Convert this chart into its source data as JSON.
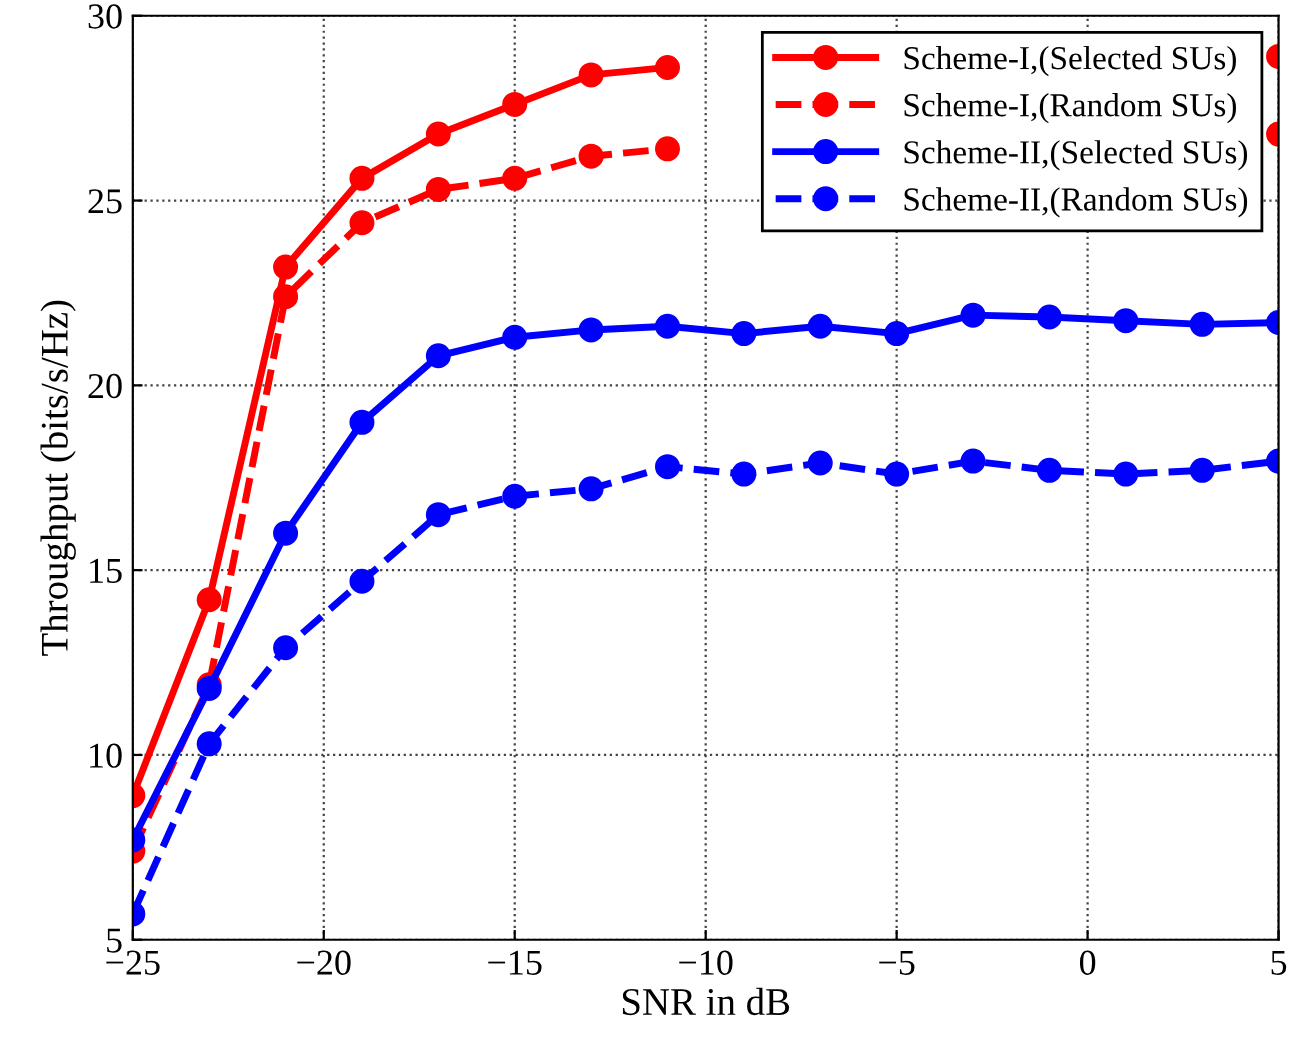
{
  "chart_data": {
    "type": "line",
    "xlabel": "SNR in dB",
    "ylabel": "Throughput (bits/s/Hz)",
    "x": [
      -25,
      -23,
      -21,
      -19,
      -17,
      -15,
      -13,
      -11,
      -9,
      -7,
      -5,
      -3,
      -1,
      1,
      3,
      5
    ],
    "xlim": [
      -25,
      5
    ],
    "xticks": [
      {
        "value": -25,
        "label": "−25"
      },
      {
        "value": -20,
        "label": "−20"
      },
      {
        "value": -15,
        "label": "−15"
      },
      {
        "value": -10,
        "label": "−10"
      },
      {
        "value": -5,
        "label": "−5"
      },
      0,
      5
    ],
    "ylim": [
      5,
      30
    ],
    "yticks": [
      5,
      10,
      15,
      20,
      25,
      30
    ],
    "grid": true,
    "legend": "top right",
    "marker": "circle",
    "series": [
      {
        "name": "Scheme-I,(Selected SUs)",
        "color": "#ff0000",
        "line_style": "solid",
        "values": [
          8.9,
          14.2,
          23.2,
          25.6,
          26.8,
          27.6,
          28.4,
          28.6,
          null,
          null,
          null,
          null,
          null,
          null,
          null,
          28.9
        ]
      },
      {
        "name": "Scheme-I,(Random SUs)",
        "color": "#ff0000",
        "line_style": "dashed",
        "values": [
          7.4,
          11.9,
          22.4,
          24.4,
          25.3,
          25.6,
          26.2,
          26.4,
          null,
          null,
          null,
          null,
          null,
          null,
          null,
          26.8
        ]
      },
      {
        "name": "Scheme-II,(Selected SUs)",
        "color": "#0000ff",
        "line_style": "solid",
        "values": [
          7.7,
          11.8,
          16.0,
          19.0,
          20.8,
          21.3,
          21.5,
          21.6,
          21.4,
          21.6,
          21.4,
          21.9,
          21.85,
          21.75,
          21.65,
          21.7
        ]
      },
      {
        "name": "Scheme-II,(Random SUs)",
        "color": "#0000ff",
        "line_style": "dashed",
        "values": [
          5.7,
          10.3,
          12.9,
          14.7,
          16.5,
          17.0,
          17.2,
          17.8,
          17.6,
          17.9,
          17.6,
          17.95,
          17.7,
          17.6,
          17.7,
          17.95
        ]
      }
    ]
  }
}
